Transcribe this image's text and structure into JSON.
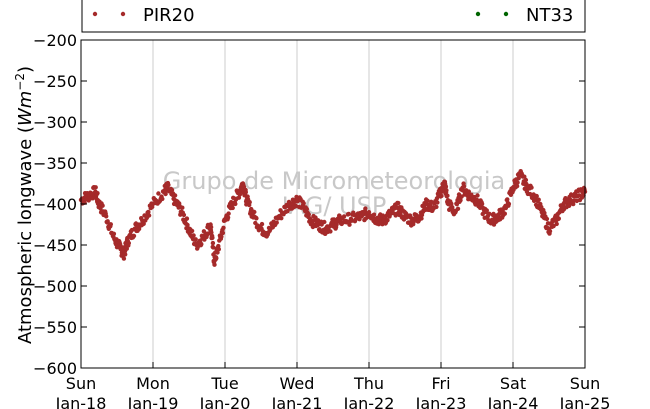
{
  "chart_data": {
    "type": "scatter",
    "ylabel_prefix": "Atmospheric longwave (",
    "ylabel_unit": "Wm",
    "ylabel_exp": "−2",
    "ylabel_suffix": ")",
    "ylim": [
      -600,
      -200
    ],
    "yticks": [
      -200,
      -250,
      -300,
      -350,
      -400,
      -450,
      -500,
      -550,
      -600
    ],
    "ytick_labels": [
      "−200",
      "−250",
      "−300",
      "−350",
      "−400",
      "−450",
      "−500",
      "−550",
      "−600"
    ],
    "xlim": [
      0,
      7
    ],
    "x_ticks": [
      {
        "day": "Sun",
        "date": "Jan-18"
      },
      {
        "day": "Mon",
        "date": "Jan-19"
      },
      {
        "day": "Tue",
        "date": "Jan-20"
      },
      {
        "day": "Wed",
        "date": "Jan-21"
      },
      {
        "day": "Thu",
        "date": "Jan-22"
      },
      {
        "day": "Fri",
        "date": "Jan-23"
      },
      {
        "day": "Sat",
        "date": "Jan-24"
      },
      {
        "day": "Sun",
        "date": "Jan-25"
      }
    ],
    "grid": "vertical",
    "legend_placement": "top",
    "watermark": [
      "Grupo de Micrometeorologia",
      "IAG/ USP"
    ],
    "series": [
      {
        "name": "PIR20",
        "color": "#a52a2a",
        "x": [
          0.0,
          0.1,
          0.2,
          0.25,
          0.35,
          0.45,
          0.55,
          0.6,
          0.65,
          0.75,
          0.85,
          1.0,
          1.15,
          1.2,
          1.3,
          1.4,
          1.5,
          1.6,
          1.7,
          1.8,
          1.85,
          1.9,
          2.0,
          2.1,
          2.2,
          2.25,
          2.3,
          2.4,
          2.5,
          2.6,
          2.75,
          2.9,
          3.0,
          3.1,
          3.2,
          3.3,
          3.4,
          3.5,
          3.6,
          3.75,
          3.9,
          4.0,
          4.1,
          4.2,
          4.3,
          4.4,
          4.5,
          4.6,
          4.7,
          4.8,
          4.9,
          5.0,
          5.05,
          5.1,
          5.2,
          5.3,
          5.4,
          5.5,
          5.6,
          5.7,
          5.8,
          5.9,
          6.0,
          6.1,
          6.2,
          6.3,
          6.4,
          6.5,
          6.6,
          6.7,
          6.8,
          6.9,
          7.0
        ],
        "y": [
          -395,
          -390,
          -385,
          -400,
          -415,
          -440,
          -455,
          -460,
          -445,
          -430,
          -420,
          -400,
          -385,
          -380,
          -395,
          -410,
          -430,
          -450,
          -440,
          -425,
          -470,
          -455,
          -420,
          -400,
          -385,
          -375,
          -395,
          -415,
          -430,
          -435,
          -415,
          -400,
          -395,
          -405,
          -420,
          -425,
          -430,
          -425,
          -420,
          -418,
          -415,
          -410,
          -418,
          -420,
          -412,
          -405,
          -415,
          -420,
          -415,
          -400,
          -405,
          -385,
          -375,
          -400,
          -410,
          -380,
          -390,
          -395,
          -410,
          -420,
          -415,
          -405,
          -380,
          -365,
          -380,
          -390,
          -410,
          -430,
          -420,
          -400,
          -395,
          -390,
          -385
        ]
      },
      {
        "name": "NT33",
        "color": "#006400",
        "x": [],
        "y": []
      }
    ]
  }
}
